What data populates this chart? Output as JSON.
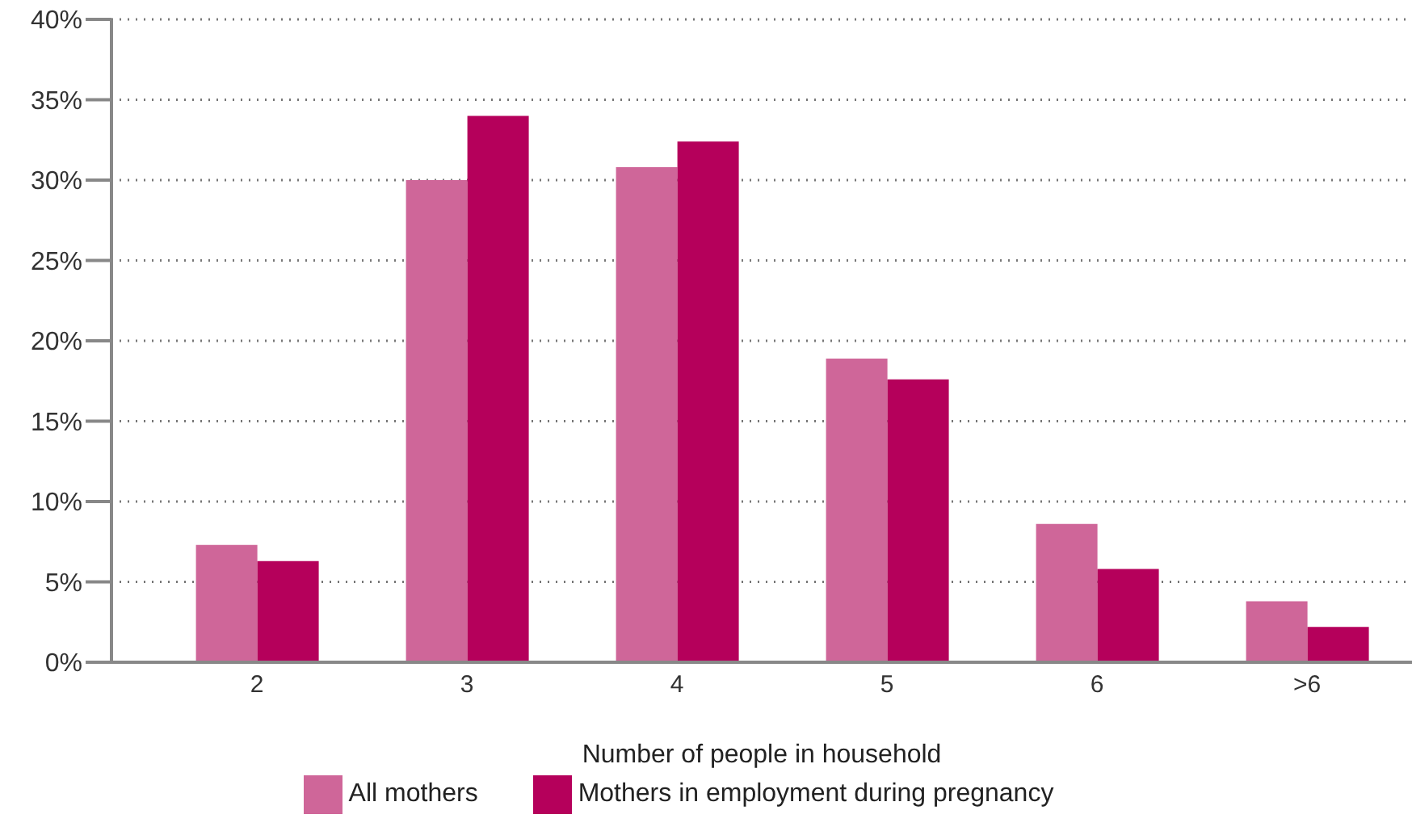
{
  "chart_data": {
    "type": "bar",
    "xlabel": "Number of people in household",
    "categories": [
      "2",
      "3",
      "4",
      "5",
      "6",
      ">6"
    ],
    "series": [
      {
        "name": "All mothers",
        "color": "#cf6699",
        "values": [
          7.3,
          30.0,
          30.8,
          18.9,
          8.6,
          3.8
        ]
      },
      {
        "name": "Mothers in employment during pregnancy",
        "color": "#b5005b",
        "values": [
          6.3,
          34.0,
          32.4,
          17.6,
          5.8,
          2.2
        ]
      }
    ],
    "ylim": [
      0,
      40
    ],
    "yticks": [
      {
        "value": 0,
        "label": "0%"
      },
      {
        "value": 5,
        "label": "5%"
      },
      {
        "value": 10,
        "label": "10%"
      },
      {
        "value": 15,
        "label": "15%"
      },
      {
        "value": 20,
        "label": "20%"
      },
      {
        "value": 25,
        "label": "25%"
      },
      {
        "value": 30,
        "label": "30%"
      },
      {
        "value": 35,
        "label": "35%"
      },
      {
        "value": 40,
        "label": "40%"
      }
    ],
    "grid": "y",
    "legend": "bottom"
  }
}
